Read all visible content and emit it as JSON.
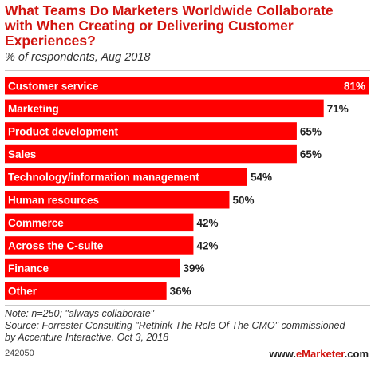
{
  "header": {
    "title": "What Teams Do Marketers Worldwide Collaborate with When Creating or Delivering Customer Experiences?",
    "subtitle": "% of respondents, Aug 2018"
  },
  "colors": {
    "bar": "#ff0000",
    "title": "#d1140f"
  },
  "chart_data": {
    "type": "bar",
    "orientation": "horizontal",
    "categories": [
      "Customer service",
      "Marketing",
      "Product development",
      "Sales",
      "Technology/information management",
      "Human resources",
      "Commerce",
      "Across the C-suite",
      "Finance",
      "Other"
    ],
    "values": [
      81,
      71,
      65,
      65,
      54,
      50,
      42,
      42,
      39,
      36
    ],
    "value_labels": [
      "81%",
      "71%",
      "65%",
      "65%",
      "54%",
      "50%",
      "42%",
      "42%",
      "39%",
      "36%"
    ],
    "xlim": [
      0,
      81
    ],
    "grid": false,
    "legend": "none"
  },
  "footer": {
    "note": "Note: n=250; \"always collaborate\"",
    "source_line1": "Source: Forrester Consulting \"Rethink The Role Of The CMO\" commissioned",
    "source_line2": "by Accenture Interactive, Oct 3, 2018",
    "chart_id": "242050",
    "logo_prefix": "www.",
    "logo_brand": "eMarketer",
    "logo_suffix": ".com"
  }
}
